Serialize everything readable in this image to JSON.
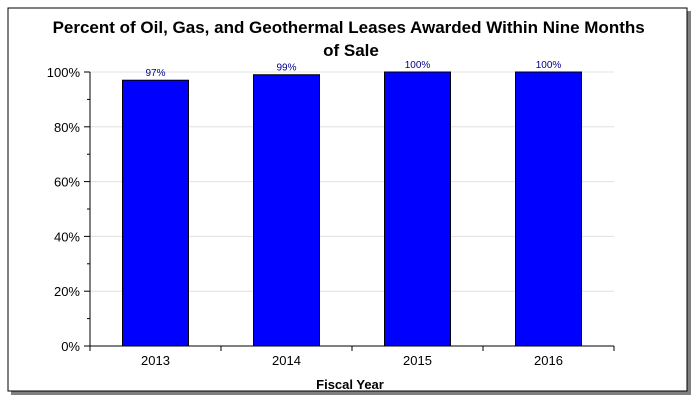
{
  "chart_data": {
    "type": "bar",
    "title": "Percent of Oil, Gas, and Geothermal Leases Awarded Within Nine Months of Sale",
    "title_lines": [
      "Percent of Oil, Gas, and Geothermal Leases Awarded Within Nine Months",
      "of Sale"
    ],
    "xlabel": "Fiscal Year",
    "ylabel": "",
    "categories": [
      "2013",
      "2014",
      "2015",
      "2016"
    ],
    "values": [
      97,
      99,
      100,
      100
    ],
    "data_labels": [
      "97%",
      "99%",
      "100%",
      "100%"
    ],
    "ylim": [
      0,
      100
    ],
    "y_ticks": [
      0,
      20,
      40,
      60,
      80,
      100
    ],
    "y_tick_labels": [
      "0%",
      "20%",
      "40%",
      "60%",
      "80%",
      "100%"
    ],
    "grid": true,
    "legend": "none",
    "colors": {
      "bar_fill": "#0000ff",
      "bar_stroke": "#000000",
      "data_label": "#00008b",
      "gridline": "#e0e0e0",
      "axis": "#000000",
      "frame": "#000000",
      "shadow": "#808080"
    }
  }
}
